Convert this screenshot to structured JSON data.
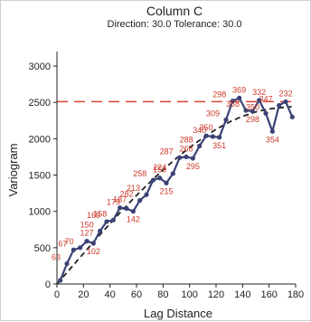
{
  "chart_data": {
    "type": "line",
    "title": "Column C",
    "subtitle": "Direction: 30.0   Tolerance: 30.0",
    "xlabel": "Lag Distance",
    "ylabel": "Variogram",
    "xlim": [
      0,
      180
    ],
    "ylim": [
      0,
      3200
    ],
    "xticks": [
      0,
      20,
      40,
      60,
      80,
      100,
      120,
      140,
      160,
      180
    ],
    "yticks": [
      0,
      500,
      1000,
      1500,
      2000,
      2500,
      3000
    ],
    "sill": 2510,
    "colors": {
      "series": "#3b4275",
      "model": "#222222",
      "sill": "#d94434",
      "labels": "#cc3a2a"
    },
    "series": [
      {
        "x": [
          2.5,
          7.5,
          12.5,
          17.5,
          22.5,
          27.5,
          32.5,
          37.5,
          42.5,
          47.5,
          52.5,
          57.5,
          62.5,
          67.5,
          72.5,
          77.5,
          82.5,
          87.5,
          92.5,
          97.5,
          102.5,
          107.5,
          112.5,
          117.5,
          122.5,
          127.5,
          132.5,
          137.5,
          142.5,
          147.5,
          152.5,
          157.5,
          162.5,
          167.5,
          172.5,
          177.5
        ],
        "y": [
          50,
          280,
          470,
          500,
          590,
          560,
          730,
          860,
          880,
          1050,
          1040,
          1000,
          1150,
          1230,
          1430,
          1460,
          1390,
          1520,
          1740,
          1750,
          1730,
          1900,
          2040,
          2030,
          2020,
          2260,
          2520,
          2560,
          2390,
          2380,
          2530,
          2350,
          2100,
          2460,
          2510,
          2300
        ],
        "counts": [
          null,
          63,
          67,
          70,
          127,
          102,
          150,
          169,
          158,
          187,
          179,
          142,
          282,
          213,
          258,
          159,
          215,
          224,
          287,
          268,
          295,
          288,
          350,
          340,
          351,
          309,
          298,
          369,
          358,
          298,
          332,
          350,
          354,
          347,
          232,
          null
        ]
      }
    ],
    "model": {
      "x": [
        0,
        10,
        20,
        30,
        40,
        50,
        60,
        70,
        80,
        90,
        100,
        110,
        120,
        130,
        140,
        150,
        160,
        170,
        177
      ],
      "y": [
        0,
        210,
        420,
        630,
        830,
        1030,
        1220,
        1400,
        1570,
        1730,
        1880,
        2010,
        2130,
        2230,
        2310,
        2370,
        2410,
        2430,
        2440
      ]
    }
  }
}
